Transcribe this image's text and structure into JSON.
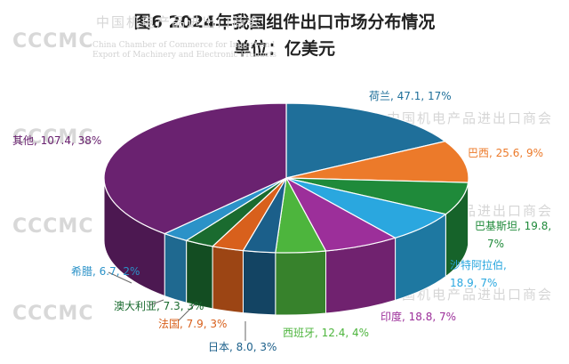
{
  "chart_data": {
    "type": "pie",
    "title": "图6 2024年我国组件出口市场分布情况",
    "subtitle": "单位：亿美元",
    "slices": [
      {
        "label": "荷兰, 47.1, 17%",
        "name": "荷兰",
        "value": 47.1,
        "percent": 17,
        "color": "#1f6f9a"
      },
      {
        "label": "巴西, 25.6, 9%",
        "name": "巴西",
        "value": 25.6,
        "percent": 9,
        "color": "#ec7a2a"
      },
      {
        "label": "巴基斯坦, 19.8, 7%",
        "name": "巴基斯坦",
        "value": 19.8,
        "percent": 7,
        "color": "#1f8a3a"
      },
      {
        "label": "沙特阿拉伯, 18.9, 7%",
        "name": "沙特阿拉伯",
        "value": 18.9,
        "percent": 7,
        "color": "#2aa7df"
      },
      {
        "label": "印度, 18.8, 7%",
        "name": "印度",
        "value": 18.8,
        "percent": 7,
        "color": "#9c2f9a"
      },
      {
        "label": "西班牙, 12.4, 4%",
        "name": "西班牙",
        "value": 12.4,
        "percent": 4,
        "color": "#4db53d"
      },
      {
        "label": "日本, 8.0, 3%",
        "name": "日本",
        "value": 8.0,
        "percent": 3,
        "color": "#1b5f8a"
      },
      {
        "label": "法国, 7.9, 3%",
        "name": "法国",
        "value": 7.9,
        "percent": 3,
        "color": "#d8601c"
      },
      {
        "label": "澳大利亚, 7.3, 3%",
        "name": "澳大利亚",
        "value": 7.3,
        "percent": 3,
        "color": "#1a6b2f"
      },
      {
        "label": "希腊, 6.7, 2%",
        "name": "希腊",
        "value": 6.7,
        "percent": 2,
        "color": "#2b92c8"
      },
      {
        "label": "其他, 107.4, 38%",
        "name": "其他",
        "value": 107.4,
        "percent": 38,
        "color": "#6a2270"
      }
    ]
  },
  "watermark": {
    "logo": "CCCMC",
    "cn": "中国机电产品进出口商会",
    "en_line1": "China Chamber of Commerce for Import and",
    "en_line2": "Export of Machinery and Electronic Products"
  }
}
